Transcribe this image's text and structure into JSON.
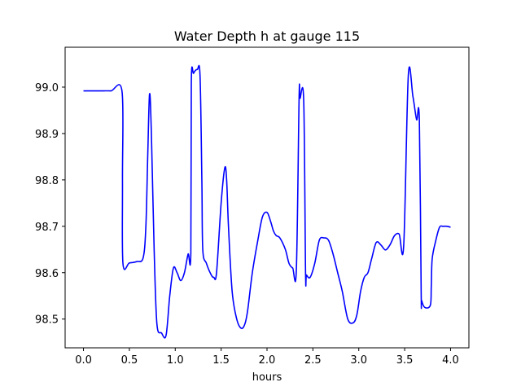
{
  "chart_data": {
    "type": "line",
    "title": "Water Depth h at gauge 115",
    "xlabel": "hours",
    "ylabel": "",
    "xlim": [
      -0.2,
      4.2
    ],
    "ylim": [
      98.438,
      99.086
    ],
    "xticks": [
      0.0,
      0.5,
      1.0,
      1.5,
      2.0,
      2.5,
      3.0,
      3.5,
      4.0
    ],
    "xtick_labels": [
      "0.0",
      "0.5",
      "1.0",
      "1.5",
      "2.0",
      "2.5",
      "3.0",
      "3.5",
      "4.0"
    ],
    "yticks": [
      98.5,
      98.6,
      98.7,
      98.8,
      98.9,
      99.0
    ],
    "ytick_labels": [
      "98.5",
      "98.6",
      "98.7",
      "98.8",
      "98.9",
      "99.0"
    ],
    "grid": false,
    "legend": "none",
    "series": [
      {
        "color": "#0000ff",
        "x": [
          0.0,
          0.2,
          0.3,
          0.42,
          0.425,
          0.43,
          0.5,
          0.58,
          0.65,
          0.68,
          0.7,
          0.72,
          0.74,
          0.77,
          0.8,
          0.85,
          0.9,
          0.94,
          0.98,
          1.02,
          1.06,
          1.1,
          1.14,
          1.17,
          1.175,
          1.2,
          1.24,
          1.27,
          1.29,
          1.3,
          1.34,
          1.39,
          1.42,
          1.45,
          1.5,
          1.54,
          1.56,
          1.58,
          1.62,
          1.67,
          1.72,
          1.76,
          1.79,
          1.84,
          1.9,
          1.95,
          2.0,
          2.04,
          2.07,
          2.1,
          2.14,
          2.2,
          2.24,
          2.28,
          2.32,
          2.35,
          2.36,
          2.4,
          2.42,
          2.43,
          2.47,
          2.52,
          2.57,
          2.62,
          2.67,
          2.72,
          2.77,
          2.82,
          2.88,
          2.94,
          2.98,
          3.02,
          3.06,
          3.1,
          3.14,
          3.19,
          3.24,
          3.29,
          3.34,
          3.39,
          3.44,
          3.49,
          3.54,
          3.59,
          3.63,
          3.66,
          3.68,
          3.685,
          3.72,
          3.78,
          3.79,
          3.8,
          3.84,
          3.88,
          3.92,
          3.96,
          4.0
        ],
        "y": [
          98.992,
          98.992,
          98.992,
          98.991,
          98.8,
          98.62,
          98.621,
          98.624,
          98.632,
          98.7,
          98.85,
          98.985,
          98.9,
          98.65,
          98.49,
          98.47,
          98.465,
          98.55,
          98.61,
          98.6,
          98.583,
          98.6,
          98.64,
          98.643,
          99.01,
          99.03,
          99.038,
          99.025,
          98.8,
          98.65,
          98.62,
          98.596,
          98.59,
          98.6,
          98.75,
          98.826,
          98.8,
          98.7,
          98.56,
          98.5,
          98.48,
          98.49,
          98.52,
          98.6,
          98.67,
          98.72,
          98.73,
          98.71,
          98.69,
          98.68,
          98.675,
          98.65,
          98.62,
          98.61,
          98.608,
          98.98,
          98.976,
          98.97,
          98.6,
          98.595,
          98.59,
          98.62,
          98.67,
          98.675,
          98.67,
          98.64,
          98.6,
          98.56,
          98.5,
          98.492,
          98.51,
          98.56,
          98.59,
          98.6,
          98.63,
          98.665,
          98.66,
          98.649,
          98.66,
          98.68,
          98.683,
          98.66,
          99.026,
          98.98,
          98.93,
          98.93,
          98.555,
          98.54,
          98.525,
          98.53,
          98.57,
          98.63,
          98.67,
          98.698,
          98.7,
          98.7,
          98.698
        ]
      }
    ]
  }
}
